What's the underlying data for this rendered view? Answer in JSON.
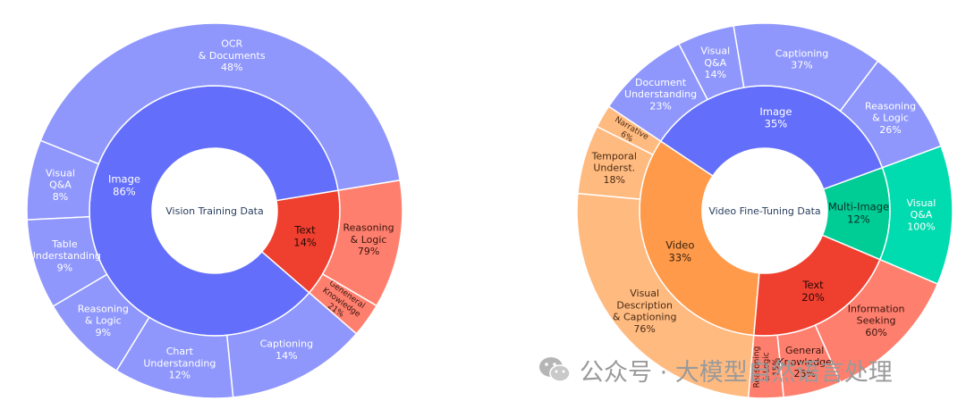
{
  "watermark": {
    "text": "公众号 · 大模型自然语言处理"
  },
  "chart_data": [
    {
      "type": "sunburst",
      "title": "Vision Training Data",
      "inner": [
        {
          "label": "Image",
          "pct": "86%",
          "value": 86,
          "color": "#636efa",
          "children": [
            {
              "label": "OCR\n& Documents",
              "pct": "48%",
              "value": 48
            },
            {
              "label": "Visual\nQ&A",
              "pct": "8%",
              "value": 8
            },
            {
              "label": "Table\nUnderstanding",
              "pct": "9%",
              "value": 9
            },
            {
              "label": "Reasoning\n& Logic",
              "pct": "9%",
              "value": 9
            },
            {
              "label": "Chart\nUnderstanding",
              "pct": "12%",
              "value": 12
            },
            {
              "label": "Captioning",
              "pct": "14%",
              "value": 14
            }
          ]
        },
        {
          "label": "Text",
          "pct": "14%",
          "value": 14,
          "color": "#ef3f2f",
          "children": [
            {
              "label": "Geneneral\nKnowledge",
              "pct": "21%",
              "value": 21
            },
            {
              "label": "Reasoning\n& Logic",
              "pct": "79%",
              "value": 79
            }
          ]
        }
      ]
    },
    {
      "type": "sunburst",
      "title": "Video Fine-Tuning Data",
      "inner": [
        {
          "label": "Image",
          "pct": "35%",
          "value": 35,
          "color": "#636efa",
          "children": [
            {
              "label": "Reasoning\n& Logic",
              "pct": "26%",
              "value": 26
            },
            {
              "label": "Captioning",
              "pct": "37%",
              "value": 37
            },
            {
              "label": "Visual\nQ&A",
              "pct": "14%",
              "value": 14
            },
            {
              "label": "Document\nUnderstanding",
              "pct": "23%",
              "value": 23
            }
          ]
        },
        {
          "label": "Multi-Image",
          "pct": "12%",
          "value": 12,
          "color": "#00cc96",
          "children": [
            {
              "label": "Visual\nQ&A",
              "pct": "100%",
              "value": 100
            }
          ]
        },
        {
          "label": "Text",
          "pct": "20%",
          "value": 20,
          "color": "#ef3f2f",
          "children": [
            {
              "label": "Reasoning\n& Logic",
              "pct": "15%",
              "value": 15
            },
            {
              "label": "General\nKnowledge",
              "pct": "25%",
              "value": 25
            },
            {
              "label": "Information\nSeeking",
              "pct": "60%",
              "value": 60
            }
          ]
        },
        {
          "label": "Video",
          "pct": "33%",
          "value": 33,
          "color": "#ff9a4a",
          "children": [
            {
              "label": "Narrative",
              "pct": "6%",
              "value": 6
            },
            {
              "label": "Temporal\nUnderst.",
              "pct": "18%",
              "value": 18
            },
            {
              "label": "Visual\nDescription\n& Captioning",
              "pct": "76%",
              "value": 76
            }
          ]
        }
      ]
    }
  ]
}
